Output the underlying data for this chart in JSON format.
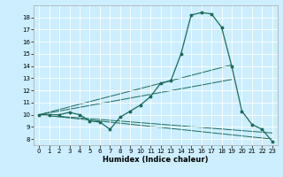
{
  "xlabel": "Humidex (Indice chaleur)",
  "background_color": "#cceeff",
  "grid_color": "#ffffff",
  "line_color": "#1a6b5a",
  "xlim": [
    -0.5,
    23.5
  ],
  "ylim": [
    7.5,
    19.0
  ],
  "xticks": [
    0,
    1,
    2,
    3,
    4,
    5,
    6,
    7,
    8,
    9,
    10,
    11,
    12,
    13,
    14,
    15,
    16,
    17,
    18,
    19,
    20,
    21,
    22,
    23
  ],
  "yticks": [
    8,
    9,
    10,
    11,
    12,
    13,
    14,
    15,
    16,
    17,
    18
  ],
  "main_x": [
    0,
    1,
    2,
    3,
    4,
    5,
    6,
    7,
    8,
    9,
    10,
    11,
    12,
    13,
    14,
    15,
    16,
    17,
    18,
    19,
    20,
    21,
    22,
    23
  ],
  "main_y": [
    10,
    10,
    10,
    10.2,
    10.0,
    9.5,
    9.4,
    8.8,
    9.8,
    10.3,
    10.8,
    11.5,
    12.6,
    12.8,
    15.0,
    18.2,
    18.4,
    18.3,
    17.2,
    14.0,
    10.3,
    9.2,
    8.8,
    7.8
  ],
  "trend_lines": [
    {
      "x": [
        0,
        23
      ],
      "y": [
        10,
        8.0
      ]
    },
    {
      "x": [
        0,
        23
      ],
      "y": [
        10,
        8.5
      ]
    },
    {
      "x": [
        0,
        19
      ],
      "y": [
        10,
        12.9
      ]
    },
    {
      "x": [
        0,
        19
      ],
      "y": [
        10,
        14.1
      ]
    }
  ]
}
